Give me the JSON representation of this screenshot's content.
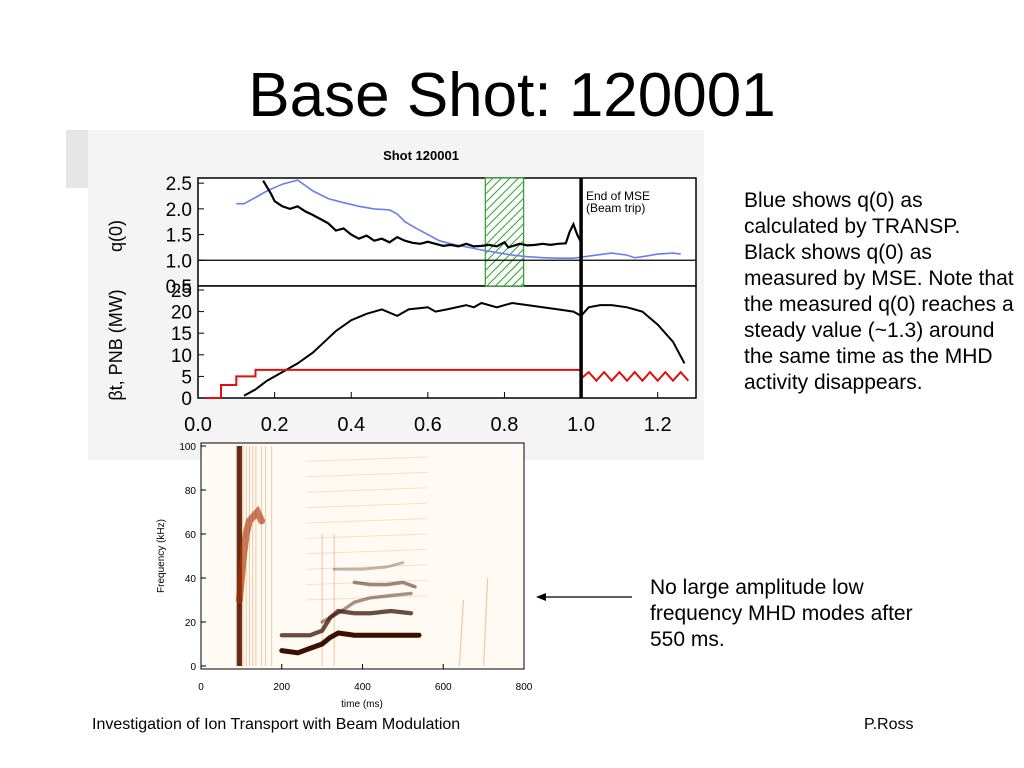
{
  "slide": {
    "title": "Base Shot: 120001",
    "note_right": "Blue shows q(0) as calculated by TRANSP. Black shows q(0) as measured by MSE. Note that the measured q(0) reaches a steady value (~1.3) around the same time as the MHD activity disappears.",
    "note_mid": "No large amplitude low frequency MHD modes after 550 ms.",
    "footer_left": "Investigation of Ion Transport with Beam Modulation",
    "footer_right": "P.Ross"
  },
  "colors": {
    "q_transp": "#6a7ef0",
    "q_mse": "#000000",
    "power_nb": "#e01010",
    "beta": "#000000",
    "mse_window": "#2ca02c"
  },
  "chart_data": [
    {
      "type": "line",
      "title": "Shot 120001",
      "panel": "top",
      "ylabel": "q(0)",
      "xlim": [
        0.0,
        1.3
      ],
      "ylim": [
        0.5,
        2.6
      ],
      "yticks": [
        "2.5",
        "2.0",
        "1.5",
        "1.0",
        "0.5"
      ],
      "annotation": "End of MSE\n(Beam trip)",
      "annotation_lines": [
        "End of MSE",
        "(Beam trip)"
      ],
      "vline_x": 1.0,
      "hline_y": 1.0,
      "shaded_region_x": [
        0.75,
        0.85
      ],
      "series": [
        {
          "id": "transp",
          "points": [
            [
              0.1,
              2.1
            ],
            [
              0.12,
              2.1
            ],
            [
              0.15,
              2.22
            ],
            [
              0.18,
              2.35
            ],
            [
              0.22,
              2.48
            ],
            [
              0.26,
              2.56
            ],
            [
              0.3,
              2.35
            ],
            [
              0.34,
              2.2
            ],
            [
              0.38,
              2.12
            ],
            [
              0.42,
              2.05
            ],
            [
              0.46,
              2.0
            ],
            [
              0.5,
              1.98
            ],
            [
              0.52,
              1.9
            ],
            [
              0.54,
              1.75
            ],
            [
              0.57,
              1.62
            ],
            [
              0.6,
              1.5
            ],
            [
              0.63,
              1.38
            ],
            [
              0.66,
              1.32
            ],
            [
              0.7,
              1.26
            ],
            [
              0.74,
              1.2
            ],
            [
              0.78,
              1.15
            ],
            [
              0.82,
              1.1
            ],
            [
              0.86,
              1.07
            ],
            [
              0.9,
              1.05
            ],
            [
              0.94,
              1.04
            ],
            [
              0.98,
              1.04
            ],
            [
              1.0,
              1.06
            ],
            [
              1.04,
              1.1
            ],
            [
              1.08,
              1.14
            ],
            [
              1.12,
              1.1
            ],
            [
              1.14,
              1.05
            ],
            [
              1.16,
              1.07
            ],
            [
              1.2,
              1.12
            ],
            [
              1.24,
              1.14
            ],
            [
              1.26,
              1.12
            ]
          ]
        },
        {
          "id": "mse",
          "points": [
            [
              0.17,
              2.55
            ],
            [
              0.19,
              2.3
            ],
            [
              0.2,
              2.15
            ],
            [
              0.22,
              2.05
            ],
            [
              0.24,
              2.0
            ],
            [
              0.26,
              2.05
            ],
            [
              0.28,
              1.95
            ],
            [
              0.3,
              1.88
            ],
            [
              0.32,
              1.8
            ],
            [
              0.34,
              1.72
            ],
            [
              0.36,
              1.58
            ],
            [
              0.38,
              1.62
            ],
            [
              0.4,
              1.5
            ],
            [
              0.42,
              1.42
            ],
            [
              0.44,
              1.48
            ],
            [
              0.46,
              1.38
            ],
            [
              0.48,
              1.42
            ],
            [
              0.5,
              1.35
            ],
            [
              0.52,
              1.45
            ],
            [
              0.54,
              1.38
            ],
            [
              0.56,
              1.34
            ],
            [
              0.58,
              1.32
            ],
            [
              0.6,
              1.36
            ],
            [
              0.62,
              1.32
            ],
            [
              0.64,
              1.28
            ],
            [
              0.66,
              1.3
            ],
            [
              0.68,
              1.27
            ],
            [
              0.7,
              1.32
            ],
            [
              0.72,
              1.27
            ],
            [
              0.74,
              1.28
            ],
            [
              0.76,
              1.3
            ],
            [
              0.78,
              1.27
            ],
            [
              0.8,
              1.35
            ],
            [
              0.81,
              1.25
            ],
            [
              0.84,
              1.32
            ],
            [
              0.86,
              1.29
            ],
            [
              0.88,
              1.3
            ],
            [
              0.9,
              1.32
            ],
            [
              0.92,
              1.3
            ],
            [
              0.94,
              1.32
            ],
            [
              0.96,
              1.33
            ],
            [
              0.97,
              1.55
            ],
            [
              0.98,
              1.7
            ],
            [
              0.99,
              1.5
            ],
            [
              1.0,
              1.35
            ]
          ]
        }
      ]
    },
    {
      "type": "line",
      "panel": "middle",
      "ylabel": "βt, PNB (MW)",
      "xlabel": "",
      "xlim": [
        0.0,
        1.3
      ],
      "ylim": [
        0,
        25
      ],
      "yticks": [
        "25",
        "20",
        "15",
        "10",
        "5",
        "0"
      ],
      "xticks": [
        "0.0",
        "0.2",
        "0.4",
        "0.6",
        "0.8",
        "1.0",
        "1.2"
      ],
      "vline_x": 1.0,
      "series": [
        {
          "id": "beta",
          "points": [
            [
              0.12,
              0.5
            ],
            [
              0.15,
              2
            ],
            [
              0.18,
              4
            ],
            [
              0.22,
              6
            ],
            [
              0.26,
              8
            ],
            [
              0.3,
              10.5
            ],
            [
              0.33,
              13
            ],
            [
              0.36,
              15.5
            ],
            [
              0.4,
              18
            ],
            [
              0.44,
              19.5
            ],
            [
              0.48,
              20.5
            ],
            [
              0.52,
              19
            ],
            [
              0.55,
              20.5
            ],
            [
              0.6,
              21
            ],
            [
              0.62,
              20
            ],
            [
              0.65,
              20.5
            ],
            [
              0.7,
              21.5
            ],
            [
              0.72,
              21
            ],
            [
              0.74,
              22
            ],
            [
              0.78,
              21
            ],
            [
              0.82,
              22
            ],
            [
              0.86,
              21.5
            ],
            [
              0.9,
              21
            ],
            [
              0.94,
              20.5
            ],
            [
              0.98,
              20
            ],
            [
              1.0,
              19
            ],
            [
              1.02,
              21
            ],
            [
              1.05,
              21.5
            ],
            [
              1.08,
              21.5
            ],
            [
              1.12,
              21
            ],
            [
              1.16,
              20
            ],
            [
              1.2,
              17
            ],
            [
              1.24,
              13
            ],
            [
              1.27,
              8
            ]
          ]
        },
        {
          "id": "pnb",
          "points": [
            [
              0.02,
              0
            ],
            [
              0.06,
              0
            ],
            [
              0.06,
              3
            ],
            [
              0.1,
              3
            ],
            [
              0.1,
              5
            ],
            [
              0.15,
              5
            ],
            [
              0.15,
              6.5
            ],
            [
              1.0,
              6.5
            ],
            [
              1.0,
              4.5
            ],
            [
              1.02,
              6
            ],
            [
              1.04,
              4
            ],
            [
              1.06,
              6
            ],
            [
              1.08,
              4
            ],
            [
              1.1,
              6
            ],
            [
              1.12,
              4
            ],
            [
              1.14,
              6
            ],
            [
              1.16,
              4
            ],
            [
              1.18,
              6
            ],
            [
              1.2,
              4
            ],
            [
              1.22,
              6
            ],
            [
              1.24,
              4
            ],
            [
              1.26,
              6
            ],
            [
              1.28,
              4
            ]
          ]
        }
      ]
    },
    {
      "type": "heatmap",
      "panel": "spectrogram",
      "xlabel": "time (ms)",
      "ylabel": "Frequency (kHz)",
      "xlim": [
        0,
        800
      ],
      "ylim": [
        0,
        100
      ],
      "xticks": [
        "0",
        "200",
        "400",
        "600",
        "800"
      ],
      "yticks": [
        "100",
        "80",
        "60",
        "40",
        "20",
        "0"
      ],
      "modes": [
        {
          "points": [
            [
              200,
              7
            ],
            [
              240,
              6
            ],
            [
              270,
              8
            ],
            [
              300,
              10
            ],
            [
              320,
              13
            ],
            [
              340,
              15
            ],
            [
              380,
              14
            ],
            [
              420,
              14
            ],
            [
              460,
              14
            ],
            [
              500,
              14
            ],
            [
              540,
              14
            ]
          ],
          "intensity": 1.0
        },
        {
          "points": [
            [
              200,
              14
            ],
            [
              240,
              14
            ],
            [
              270,
              14
            ],
            [
              300,
              16
            ],
            [
              320,
              22
            ],
            [
              340,
              25
            ],
            [
              380,
              24
            ],
            [
              420,
              24
            ],
            [
              470,
              25
            ],
            [
              520,
              24
            ]
          ],
          "intensity": 0.75
        },
        {
          "points": [
            [
              300,
              20
            ],
            [
              340,
              24
            ],
            [
              380,
              29
            ],
            [
              420,
              31
            ],
            [
              470,
              32
            ],
            [
              520,
              33
            ]
          ],
          "intensity": 0.45
        },
        {
          "points": [
            [
              380,
              38
            ],
            [
              420,
              37
            ],
            [
              460,
              37
            ],
            [
              500,
              38
            ],
            [
              530,
              36
            ]
          ],
          "intensity": 0.5
        },
        {
          "points": [
            [
              330,
              44
            ],
            [
              400,
              44
            ],
            [
              460,
              45
            ],
            [
              500,
              47
            ]
          ],
          "intensity": 0.3
        }
      ],
      "early_burst": {
        "points": [
          [
            95,
            30
          ],
          [
            100,
            40
          ],
          [
            105,
            50
          ],
          [
            112,
            60
          ],
          [
            120,
            66
          ],
          [
            130,
            68
          ],
          [
            140,
            70
          ],
          [
            150,
            66
          ]
        ],
        "intensity": 0.9
      }
    }
  ]
}
